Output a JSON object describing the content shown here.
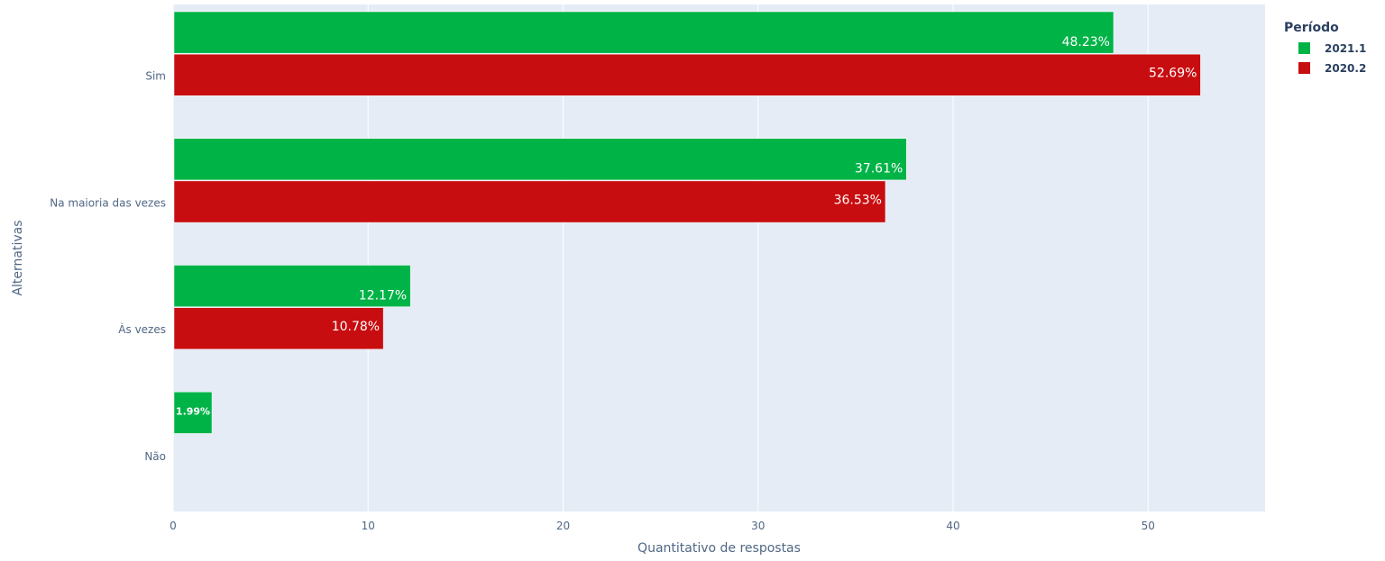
{
  "chart_data": {
    "type": "bar",
    "orientation": "horizontal",
    "categories": [
      "Sim",
      "Na maioria das vezes",
      "Às vezes",
      "Não"
    ],
    "series": [
      {
        "name": "2021.1",
        "values": [
          48.23,
          37.61,
          12.17,
          1.99
        ],
        "labels": [
          "48.23%",
          "37.61%",
          "12.17%",
          "1.99%"
        ],
        "color": "#00b347"
      },
      {
        "name": "2020.2",
        "values": [
          52.69,
          36.53,
          10.78,
          null
        ],
        "labels": [
          "52.69%",
          "36.53%",
          "10.78%",
          ""
        ],
        "color": "#c80d10"
      }
    ],
    "xlabel": "Quantitativo de respostas",
    "ylabel": "Alternativas",
    "xlim": [
      0,
      56
    ],
    "xticks": [
      0,
      10,
      20,
      30,
      40,
      50
    ],
    "legend": {
      "title": "Período",
      "position": "top-right"
    },
    "grid": true,
    "plot_bg": "#e5ecf6"
  }
}
